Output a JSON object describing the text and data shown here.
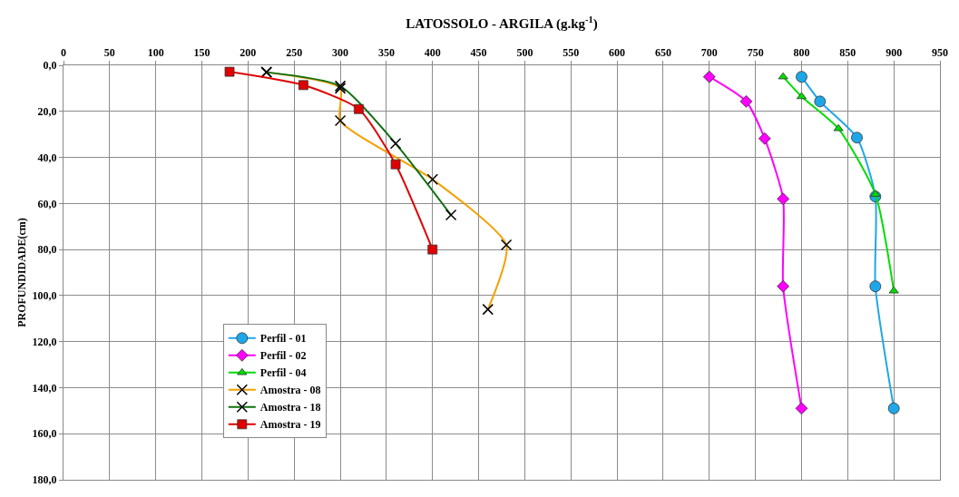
{
  "chart_data": {
    "type": "line",
    "xlabel": "LATOSSOLO - ARGILA (g.kg$^{-1}$)",
    "ylabel": "PROFUNDIDADE(cm)",
    "xlim": [
      0,
      950
    ],
    "xticks": [
      0,
      50,
      100,
      150,
      200,
      250,
      300,
      350,
      400,
      450,
      500,
      550,
      600,
      650,
      700,
      750,
      800,
      850,
      900,
      950
    ],
    "ylim": [
      180,
      0
    ],
    "yticks": [
      {
        "value": 0,
        "label": "0,0"
      },
      {
        "value": 20,
        "label": "20,0"
      },
      {
        "value": 40,
        "label": "40,0"
      },
      {
        "value": 60,
        "label": "60,0"
      },
      {
        "value": 80,
        "label": "80,0"
      },
      {
        "value": 100,
        "label": "100,0"
      },
      {
        "value": 120,
        "label": "120,0"
      },
      {
        "value": 140,
        "label": "140,0"
      },
      {
        "value": 160,
        "label": "160,0"
      },
      {
        "value": 180,
        "label": "180,0"
      }
    ],
    "grid": true,
    "legend": "bottom left",
    "series": [
      {
        "name": "Perfil - 01",
        "color": "#1ea7e8",
        "marker": "circle",
        "x": [
          800,
          820,
          860,
          880,
          880,
          900
        ],
        "values": [
          5,
          15.7,
          31.4,
          57,
          96,
          149
        ]
      },
      {
        "name": "Perfil - 02",
        "color": "#ff00ff",
        "marker": "diamond",
        "x": [
          700,
          740,
          760,
          780,
          780,
          800
        ],
        "values": [
          5,
          15.7,
          31.8,
          58,
          96,
          149
        ]
      },
      {
        "name": "Perfil - 04",
        "color": "#00dd00",
        "marker": "triangle",
        "x": [
          780,
          800,
          840,
          880,
          900
        ],
        "values": [
          5,
          13.6,
          27.5,
          56,
          98
        ]
      },
      {
        "name": "Amostra - 08",
        "color": "#f5a000",
        "marker": "cross",
        "x": [
          220,
          300,
          300,
          400,
          480,
          460
        ],
        "values": [
          3,
          10,
          24,
          49.5,
          78,
          106
        ]
      },
      {
        "name": "Amostra - 18",
        "color": "#107010",
        "marker": "cross",
        "x": [
          220,
          300,
          360,
          420
        ],
        "values": [
          3,
          9,
          34,
          65
        ]
      },
      {
        "name": "Amostra - 19",
        "color": "#e00000",
        "marker": "square",
        "x": [
          180,
          260,
          320,
          360,
          400
        ],
        "values": [
          2.8,
          8.6,
          19,
          43,
          80
        ]
      }
    ]
  }
}
